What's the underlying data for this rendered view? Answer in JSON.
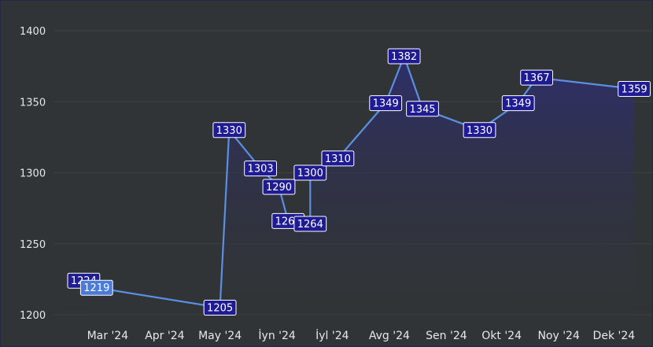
{
  "chart_data": {
    "type": "area",
    "title": "",
    "xlabel": "",
    "ylabel": "",
    "ylim": [
      1200,
      1400
    ],
    "y_ticks": [
      "1200",
      "1250",
      "1300",
      "1350",
      "1400"
    ],
    "x_tick_labels": [
      "Mar '24",
      "Apr '24",
      "May '24",
      "İyn '24",
      "İyl '24",
      "Avg '24",
      "Sen '24",
      "Okt '24",
      "Noy '24",
      "Dek '24"
    ],
    "grid": true,
    "legend": "none",
    "series": [
      {
        "points": [
          {
            "date": "2024-02-17",
            "value": 1224
          },
          {
            "date": "2024-02-24",
            "value": 1219
          },
          {
            "date": "2024-05-01",
            "value": 1205
          },
          {
            "date": "2024-05-06",
            "value": 1330
          },
          {
            "date": "2024-05-23",
            "value": 1303
          },
          {
            "date": "2024-06-02",
            "value": 1290
          },
          {
            "date": "2024-06-07",
            "value": 1266
          },
          {
            "date": "2024-06-19",
            "value": 1264
          },
          {
            "date": "2024-06-19",
            "value": 1300
          },
          {
            "date": "2024-07-04",
            "value": 1310
          },
          {
            "date": "2024-07-30",
            "value": 1349
          },
          {
            "date": "2024-08-09",
            "value": 1382
          },
          {
            "date": "2024-08-19",
            "value": 1345
          },
          {
            "date": "2024-09-19",
            "value": 1330
          },
          {
            "date": "2024-10-10",
            "value": 1349
          },
          {
            "date": "2024-10-20",
            "value": 1367
          },
          {
            "date": "2024-12-12",
            "value": 1359
          }
        ]
      }
    ],
    "colors": {
      "line": "#5b8fe0",
      "area_top": "#2e2e6e",
      "area_bottom": "#313436",
      "label_bg": "#1f1b93",
      "label_bg_highlight": "#4a7bd8",
      "label_border": "#ffffff",
      "grid": "#3e4143",
      "text": "#e6e8ea"
    }
  }
}
